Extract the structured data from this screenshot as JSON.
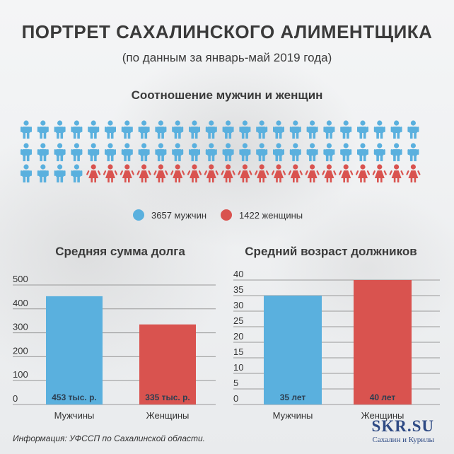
{
  "header": {
    "title": "ПОРТРЕТ САХАЛИНСКОГО АЛИМЕНТЩИКА",
    "subtitle": "(по данным за январь-май 2019 года)"
  },
  "ratio": {
    "title": "Соотношение мужчин и женщин",
    "icons_total": 72,
    "men_icons": 52,
    "women_icons": 20,
    "men_color": "#5ab0de",
    "women_color": "#d9534f",
    "legend_men": "3657 мужчин",
    "legend_women": "1422 женщины"
  },
  "chart_data": [
    {
      "type": "bar",
      "title": "Средняя сумма долга",
      "categories": [
        "Мужчины",
        "Женщины"
      ],
      "values": [
        453,
        335
      ],
      "value_labels": [
        "453 тыс. р.",
        "335 тыс. р."
      ],
      "colors": [
        "#5ab0de",
        "#d9534f"
      ],
      "ylim": [
        0,
        500
      ],
      "yticks": [
        0,
        100,
        200,
        300,
        400,
        500
      ],
      "grid": true
    },
    {
      "type": "bar",
      "title": "Средний возраст должников",
      "categories": [
        "Мужчины",
        "Женщины"
      ],
      "values": [
        35,
        40
      ],
      "value_labels": [
        "35 лет",
        "40 лет"
      ],
      "colors": [
        "#5ab0de",
        "#d9534f"
      ],
      "ylim": [
        0,
        40
      ],
      "yticks": [
        0,
        5,
        10,
        15,
        20,
        25,
        30,
        35,
        40
      ],
      "grid": true
    }
  ],
  "footer": {
    "source": "Информация: УФССП по Сахалинской области.",
    "logo_main": "SKR.SU",
    "logo_sub": "Сахалин и Курилы"
  }
}
